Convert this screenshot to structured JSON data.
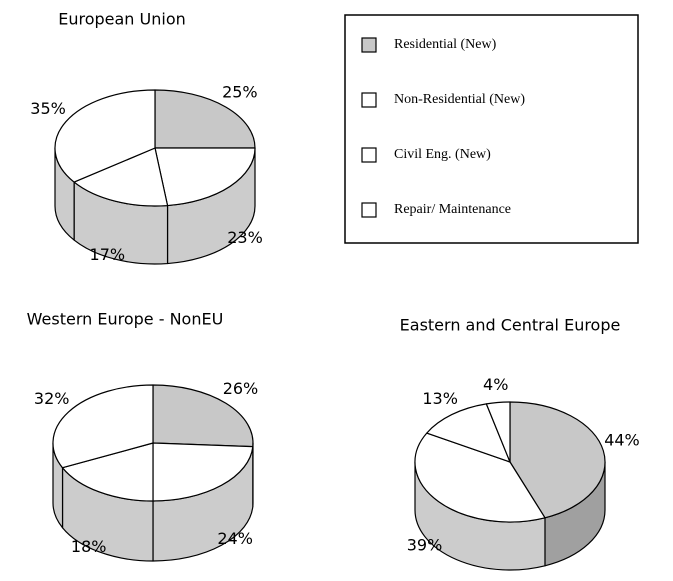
{
  "chart_data": [
    {
      "type": "pie",
      "title": "European Union",
      "categories": [
        "Residential (New)",
        "Non-Residential (New)",
        "Civil Eng. (New)",
        "Repair/ Maintenance"
      ],
      "values": [
        25,
        23,
        17,
        35
      ],
      "value_labels": [
        "25%",
        "23%",
        "17%",
        "35%"
      ],
      "colors": [
        "#c8c8c8",
        "#ffffff",
        "#ffffff",
        "#ffffff"
      ]
    },
    {
      "type": "pie",
      "title": "Western Europe - NonEU",
      "categories": [
        "Residential (New)",
        "Non-Residential (New)",
        "Civil Eng. (New)",
        "Repair/ Maintenance"
      ],
      "values": [
        26,
        24,
        18,
        32
      ],
      "value_labels": [
        "26%",
        "24%",
        "18%",
        "32%"
      ],
      "colors": [
        "#c8c8c8",
        "#ffffff",
        "#ffffff",
        "#ffffff"
      ]
    },
    {
      "type": "pie",
      "title": "Eastern and Central Europe",
      "categories": [
        "Residential (New)",
        "Non-Residential (New)",
        "Civil Eng. (New)",
        "Repair/ Maintenance"
      ],
      "values": [
        44,
        39,
        13,
        4
      ],
      "value_labels": [
        "44%",
        "39%",
        "13%",
        "4%"
      ],
      "colors": [
        "#c8c8c8",
        "#ffffff",
        "#ffffff",
        "#ffffff"
      ]
    }
  ]
}
